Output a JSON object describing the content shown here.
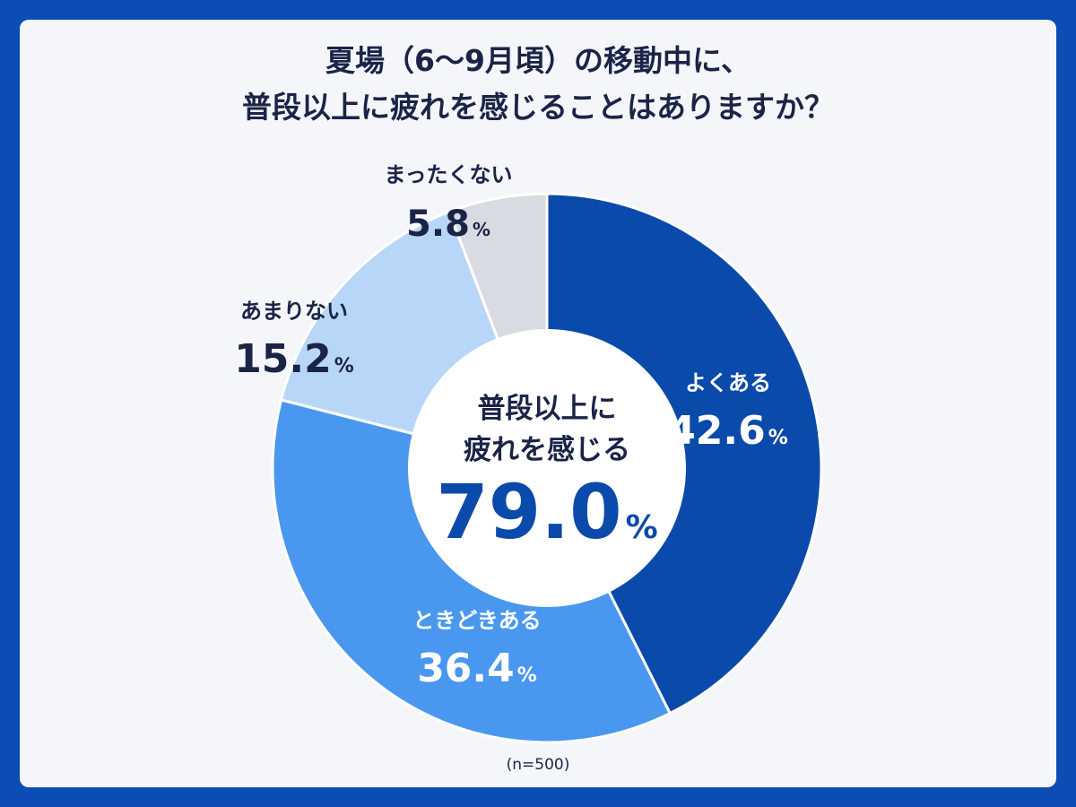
{
  "title_line1": "夏場（6〜9月頃）の移動中に、",
  "title_line2": "普段以上に疲れを感じることはありますか？",
  "center": {
    "line1": "普段以上",
    "line1b": "に",
    "line2": "疲れを感じる",
    "value": "79.0",
    "unit": "%"
  },
  "note": "(n=500)",
  "chart_data": {
    "type": "pie",
    "variant": "donut",
    "title": "夏場（6〜9月頃）の移動中に、普段以上に疲れを感じることはありますか？",
    "categories": [
      "よくある",
      "ときどきある",
      "あまりない",
      "まったくない"
    ],
    "values": [
      42.6,
      36.4,
      15.2,
      5.8
    ],
    "value_labels": [
      "42.6",
      "36.4",
      "15.2",
      "5.8"
    ],
    "unit": "%",
    "colors": [
      "#0a4aab",
      "#4a97f0",
      "#b8d6f7",
      "#d9dbe2"
    ],
    "label_text_colors": [
      "#ffffff",
      "#ffffff",
      "#1a2447",
      "#1a2447"
    ],
    "center_total": 79.0,
    "sample_size": "n=500"
  }
}
